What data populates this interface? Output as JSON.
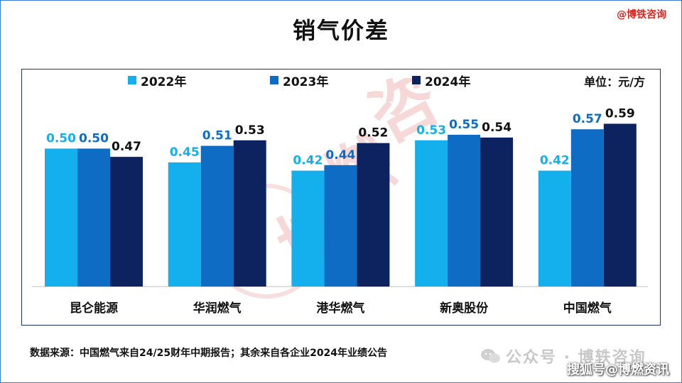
{
  "title": "销气价差",
  "brand_tag": "@博铁咨询",
  "unit_label": "单位：元/方",
  "source_note": "数据来源：中国燃气来自24/25财年中期报告；其余来自各企业2024年业绩公告",
  "wechat_mark": "公众号 · 博轶咨询",
  "sohu_mark": "搜狐号@博燃资讯",
  "colors": {
    "s2022": "#14b0ee",
    "s2023": "#0e6cc4",
    "s2024": "#0d2360",
    "watermark": "#f1b8b8"
  },
  "chart_data": {
    "type": "bar",
    "title": "销气价差",
    "unit": "单位：元/方",
    "categories": [
      "昆仑能源",
      "华润燃气",
      "港华燃气",
      "新奥股份",
      "中国燃气"
    ],
    "series": [
      {
        "name": "2022年",
        "values": [
          0.5,
          0.45,
          0.42,
          0.53,
          0.42
        ]
      },
      {
        "name": "2023年",
        "values": [
          0.5,
          0.51,
          0.44,
          0.55,
          0.57
        ]
      },
      {
        "name": "2024年",
        "values": [
          0.47,
          0.53,
          0.52,
          0.54,
          0.59
        ]
      }
    ],
    "data_labels": [
      [
        "0.50",
        "0.45",
        "0.42",
        "0.53",
        "0.42"
      ],
      [
        "0.50",
        "0.51",
        "0.44",
        "0.55",
        "0.57"
      ],
      [
        "0.47",
        "0.53",
        "0.52",
        "0.54",
        "0.59"
      ]
    ],
    "ylim": [
      0,
      0.73
    ],
    "grid": false,
    "legend_position": "top"
  }
}
